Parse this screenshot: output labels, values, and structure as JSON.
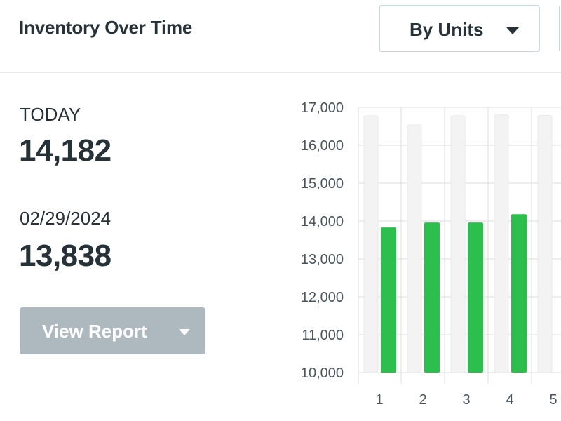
{
  "header": {
    "title": "Inventory Over Time",
    "unit_select": {
      "selected": "By Units"
    }
  },
  "stats": {
    "today": {
      "label": "TODAY",
      "value": "14,182"
    },
    "previous": {
      "label": "02/29/2024",
      "value": "13,838"
    }
  },
  "report_button": {
    "label": "View Report"
  },
  "colors": {
    "bar": "#2dbf4e",
    "background_bar": "#f3f3f3",
    "grid": "#dcdcdc",
    "button": "#aeb8bf",
    "text": "#263238"
  },
  "chart_data": {
    "type": "bar",
    "categories": [
      "1",
      "2",
      "3",
      "4",
      "5"
    ],
    "values": [
      13830,
      13960,
      13960,
      14180,
      null
    ],
    "background_values": [
      16780,
      16540,
      16780,
      16810,
      16790
    ],
    "ylim": [
      10000,
      17000
    ],
    "yticks": [
      10000,
      11000,
      12000,
      13000,
      14000,
      15000,
      16000,
      17000
    ],
    "ytick_labels": [
      "10,000",
      "11,000",
      "12,000",
      "13,000",
      "14,000",
      "15,000",
      "16,000",
      "17,000"
    ],
    "grid": true
  }
}
